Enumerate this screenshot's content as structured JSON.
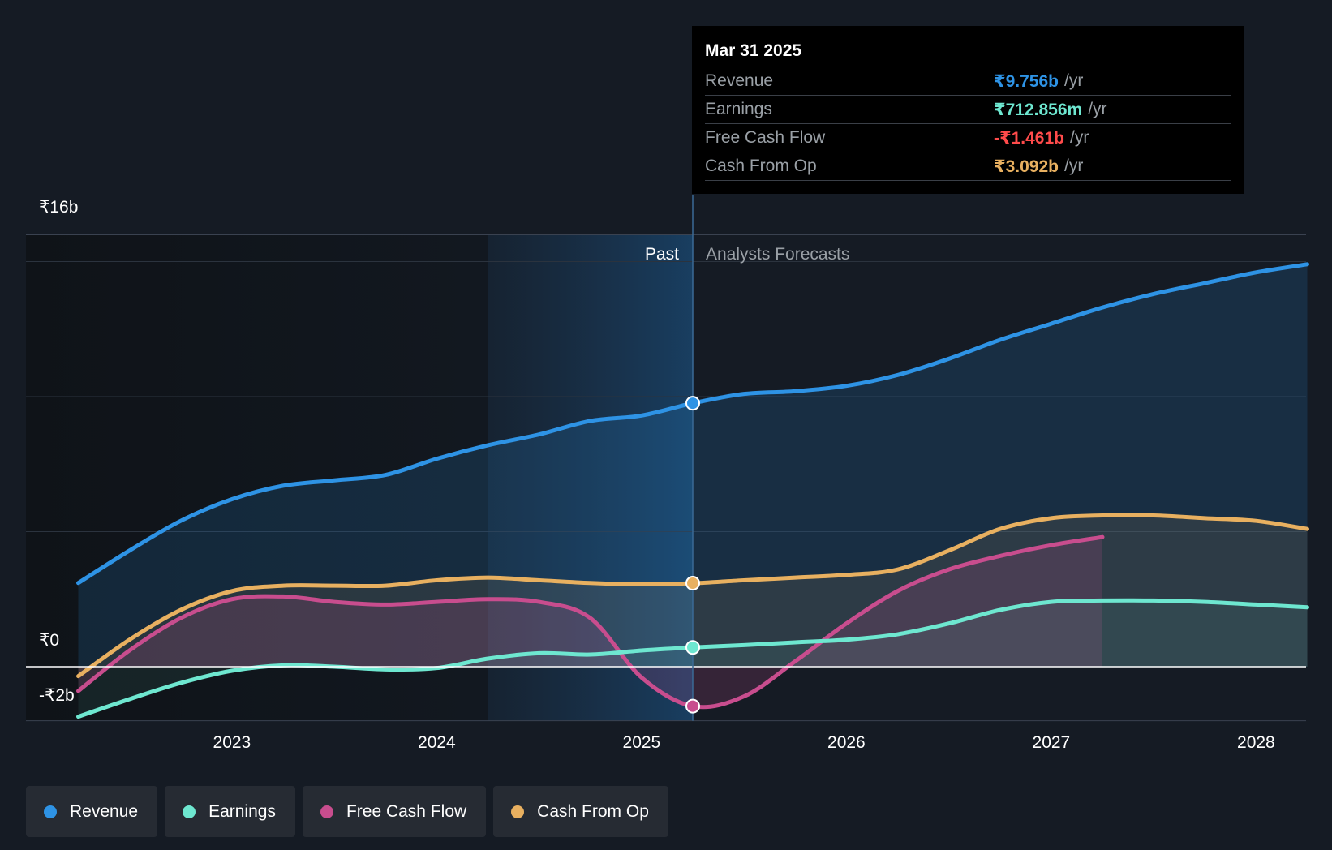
{
  "colors": {
    "revenue": "#2e93e5",
    "earnings": "#6ee7d0",
    "fcf": "#c84d8e",
    "cfo": "#e8b060",
    "negative": "#ff4b4b",
    "background": "#151b24"
  },
  "tooltip": {
    "date": "Mar 31 2025",
    "rows": [
      {
        "label": "Revenue",
        "value": "₹9.756b",
        "unit": "/yr"
      },
      {
        "label": "Earnings",
        "value": "₹712.856m",
        "unit": "/yr"
      },
      {
        "label": "Free Cash Flow",
        "value": "-₹1.461b",
        "unit": "/yr"
      },
      {
        "label": "Cash From Op",
        "value": "₹3.092b",
        "unit": "/yr"
      }
    ]
  },
  "legend": [
    {
      "label": "Revenue"
    },
    {
      "label": "Earnings"
    },
    {
      "label": "Free Cash Flow"
    },
    {
      "label": "Cash From Op"
    }
  ],
  "chart_data": {
    "type": "area",
    "title": "",
    "xlabel": "",
    "ylabel": "",
    "ylim": [
      -2,
      16
    ],
    "xlim": [
      2022.25,
      2028.25
    ],
    "y_tick_labels": [
      {
        "value": 16,
        "label": "₹16b"
      },
      {
        "value": 0,
        "label": "₹0"
      },
      {
        "value": -2,
        "label": "-₹2b"
      }
    ],
    "x_ticks": [
      {
        "value": 2023,
        "label": "2023"
      },
      {
        "value": 2024,
        "label": "2024"
      },
      {
        "value": 2025,
        "label": "2025"
      },
      {
        "value": 2026,
        "label": "2026"
      },
      {
        "value": 2027,
        "label": "2027"
      },
      {
        "value": 2028,
        "label": "2028"
      }
    ],
    "gridlines": [
      15,
      10,
      5
    ],
    "past_start": 2024.25,
    "divider_x": 2025.25,
    "past_label": "Past",
    "forecast_label": "Analysts Forecasts",
    "series": [
      {
        "name": "Revenue",
        "key": "revenue",
        "forecast_end": 2028.25,
        "points": [
          [
            2022.25,
            3.1
          ],
          [
            2022.5,
            4.3
          ],
          [
            2022.75,
            5.4
          ],
          [
            2023.0,
            6.2
          ],
          [
            2023.25,
            6.7
          ],
          [
            2023.5,
            6.9
          ],
          [
            2023.75,
            7.1
          ],
          [
            2024.0,
            7.7
          ],
          [
            2024.25,
            8.2
          ],
          [
            2024.5,
            8.6
          ],
          [
            2024.75,
            9.1
          ],
          [
            2025.0,
            9.3
          ],
          [
            2025.25,
            9.756
          ],
          [
            2025.5,
            10.1
          ],
          [
            2025.75,
            10.2
          ],
          [
            2026.0,
            10.4
          ],
          [
            2026.25,
            10.8
          ],
          [
            2026.5,
            11.4
          ],
          [
            2026.75,
            12.1
          ],
          [
            2027.0,
            12.7
          ],
          [
            2027.25,
            13.3
          ],
          [
            2027.5,
            13.8
          ],
          [
            2027.75,
            14.2
          ],
          [
            2028.0,
            14.6
          ],
          [
            2028.25,
            14.9
          ]
        ]
      },
      {
        "name": "Cash From Op",
        "key": "cfo",
        "forecast_end": 2028.25,
        "points": [
          [
            2022.25,
            -0.35
          ],
          [
            2022.5,
            1.0
          ],
          [
            2022.75,
            2.1
          ],
          [
            2023.0,
            2.8
          ],
          [
            2023.25,
            3.0
          ],
          [
            2023.5,
            3.0
          ],
          [
            2023.75,
            3.0
          ],
          [
            2024.0,
            3.2
          ],
          [
            2024.25,
            3.3
          ],
          [
            2024.5,
            3.2
          ],
          [
            2024.75,
            3.1
          ],
          [
            2025.0,
            3.05
          ],
          [
            2025.25,
            3.092
          ],
          [
            2025.5,
            3.2
          ],
          [
            2025.75,
            3.3
          ],
          [
            2026.0,
            3.4
          ],
          [
            2026.25,
            3.6
          ],
          [
            2026.5,
            4.3
          ],
          [
            2026.75,
            5.1
          ],
          [
            2027.0,
            5.5
          ],
          [
            2027.25,
            5.6
          ],
          [
            2027.5,
            5.6
          ],
          [
            2027.75,
            5.5
          ],
          [
            2028.0,
            5.4
          ],
          [
            2028.25,
            5.1
          ]
        ]
      },
      {
        "name": "Free Cash Flow",
        "key": "fcf",
        "forecast_end": 2027.25,
        "points": [
          [
            2022.25,
            -0.9
          ],
          [
            2022.5,
            0.6
          ],
          [
            2022.75,
            1.8
          ],
          [
            2023.0,
            2.5
          ],
          [
            2023.25,
            2.6
          ],
          [
            2023.5,
            2.4
          ],
          [
            2023.75,
            2.3
          ],
          [
            2024.0,
            2.4
          ],
          [
            2024.25,
            2.5
          ],
          [
            2024.5,
            2.4
          ],
          [
            2024.75,
            1.8
          ],
          [
            2025.0,
            -0.4
          ],
          [
            2025.25,
            -1.461
          ],
          [
            2025.5,
            -1.1
          ],
          [
            2025.75,
            0.2
          ],
          [
            2026.0,
            1.6
          ],
          [
            2026.25,
            2.8
          ],
          [
            2026.5,
            3.6
          ],
          [
            2026.75,
            4.1
          ],
          [
            2027.0,
            4.5
          ],
          [
            2027.25,
            4.8
          ]
        ]
      },
      {
        "name": "Earnings",
        "key": "earnings",
        "forecast_end": 2028.25,
        "points": [
          [
            2022.25,
            -1.85
          ],
          [
            2022.5,
            -1.2
          ],
          [
            2022.75,
            -0.6
          ],
          [
            2023.0,
            -0.15
          ],
          [
            2023.25,
            0.05
          ],
          [
            2023.5,
            0.0
          ],
          [
            2023.75,
            -0.1
          ],
          [
            2024.0,
            -0.05
          ],
          [
            2024.25,
            0.3
          ],
          [
            2024.5,
            0.5
          ],
          [
            2024.75,
            0.45
          ],
          [
            2025.0,
            0.6
          ],
          [
            2025.25,
            0.713
          ],
          [
            2025.5,
            0.8
          ],
          [
            2025.75,
            0.9
          ],
          [
            2026.0,
            1.0
          ],
          [
            2026.25,
            1.2
          ],
          [
            2026.5,
            1.6
          ],
          [
            2026.75,
            2.1
          ],
          [
            2027.0,
            2.4
          ],
          [
            2027.25,
            2.45
          ],
          [
            2027.5,
            2.45
          ],
          [
            2027.75,
            2.4
          ],
          [
            2028.0,
            2.3
          ],
          [
            2028.25,
            2.2
          ]
        ]
      }
    ]
  }
}
